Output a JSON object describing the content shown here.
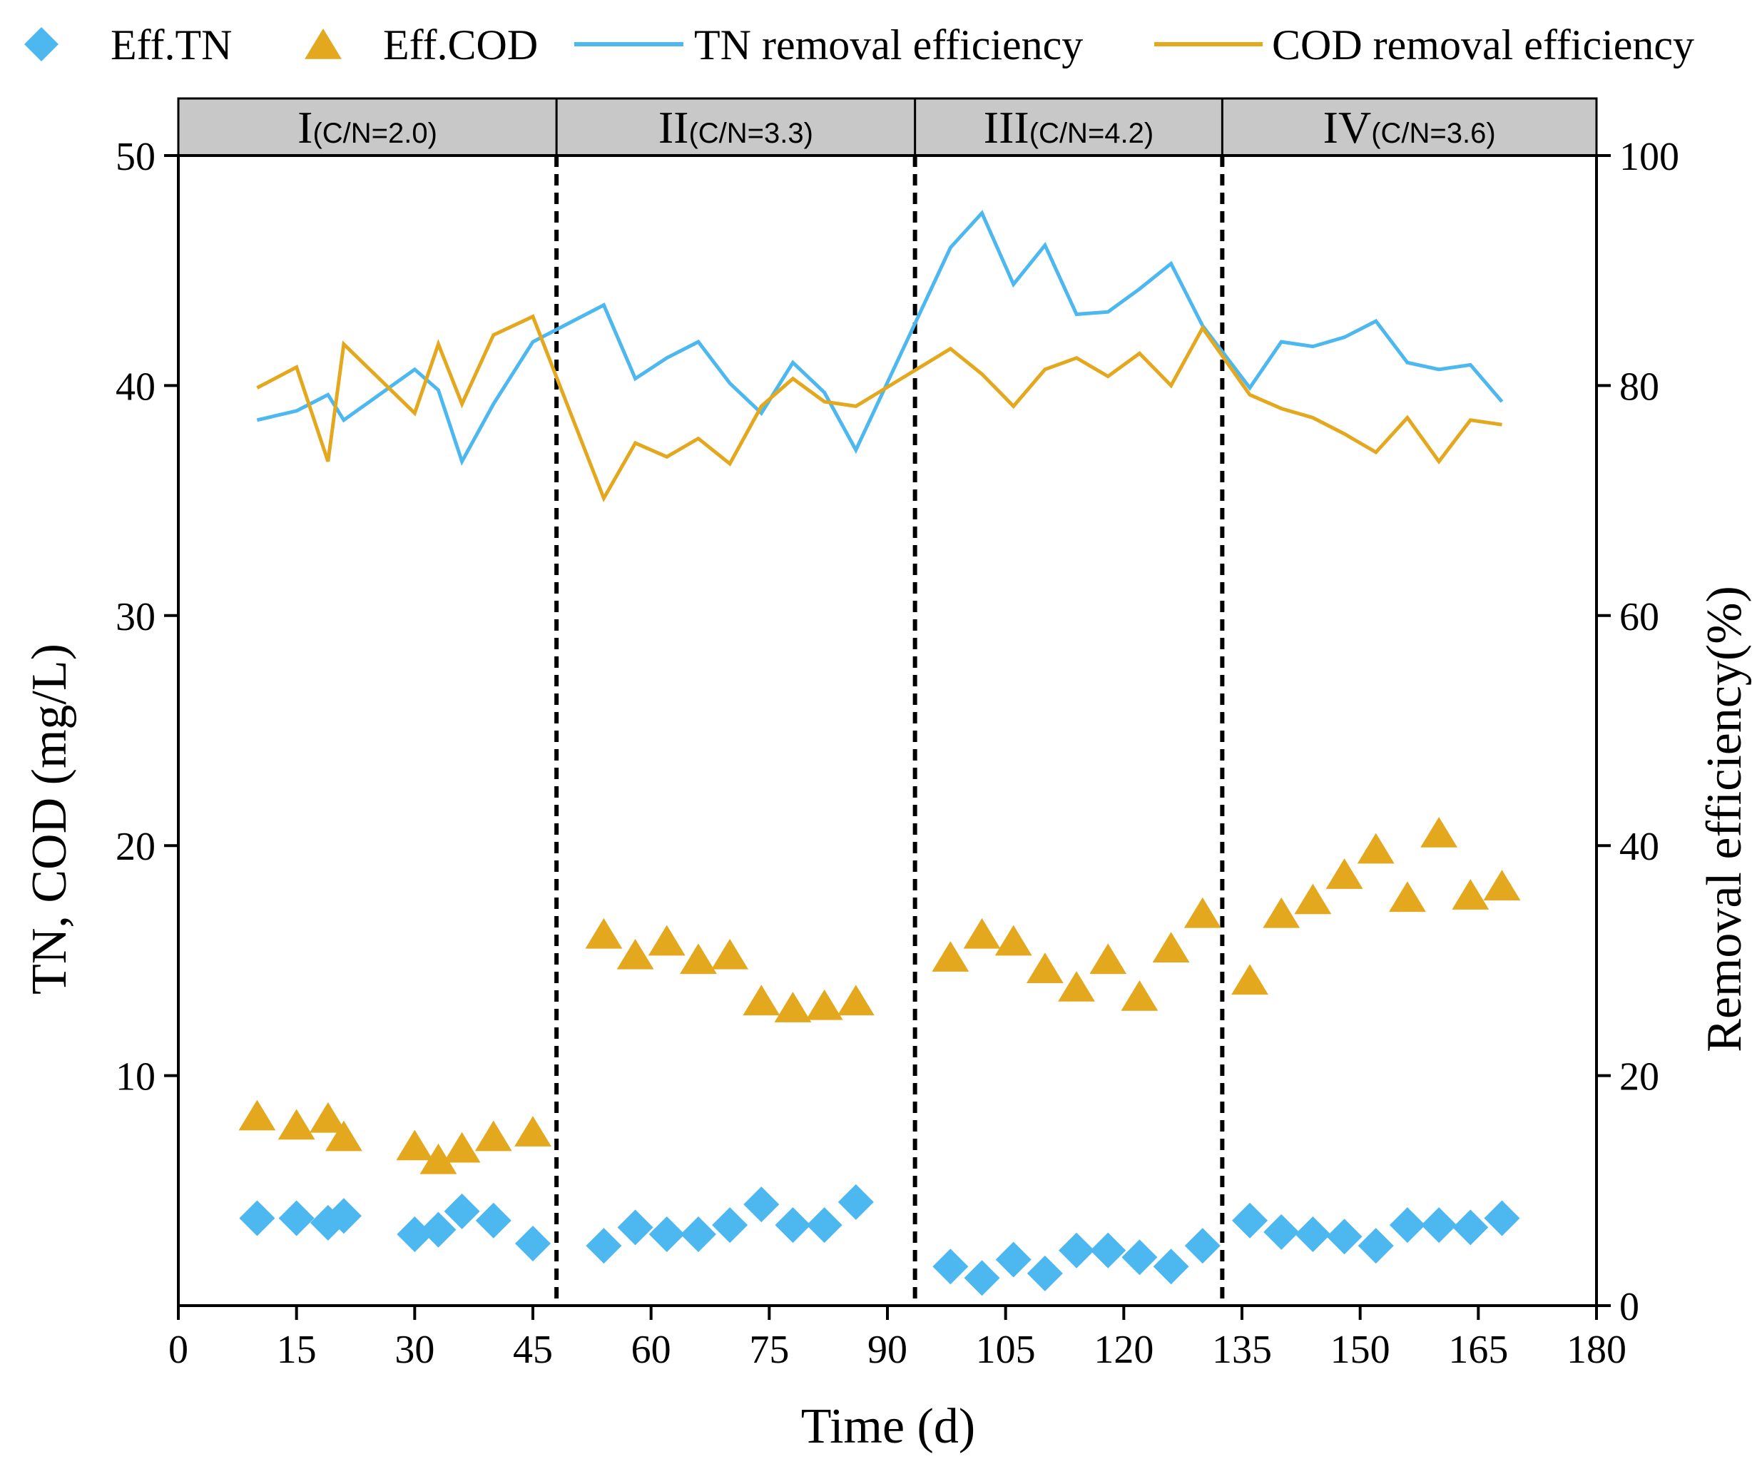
{
  "chart_data": {
    "type": "scatter",
    "xlabel": "Time (d)",
    "ylabel": "TN, COD (mg/L)",
    "y2label": "Removal efficiency(%)",
    "xlim": [
      0,
      180
    ],
    "ylim": [
      0,
      50
    ],
    "y2lim": [
      0,
      100
    ],
    "xticks": [
      "0",
      "15",
      "30",
      "45",
      "60",
      "75",
      "90",
      "105",
      "120",
      "135",
      "150",
      "165",
      "180"
    ],
    "yticks": [
      "10",
      "20",
      "30",
      "40",
      "50"
    ],
    "y2ticks": [
      "0",
      "20",
      "40",
      "60",
      "80",
      "100"
    ],
    "grid": false,
    "legend_position": "top",
    "colors": {
      "tn": "#4DB8F0",
      "cod": "#E3A81E"
    },
    "phases": [
      {
        "roman": "I",
        "cn": "(C/N=2.0)",
        "start": 0,
        "end": 48
      },
      {
        "roman": "II",
        "cn": "(C/N=3.3)",
        "start": 48,
        "end": 93.5
      },
      {
        "roman": "III",
        "cn": "(C/N=4.2)",
        "start": 93.5,
        "end": 132.5
      },
      {
        "roman": "IV",
        "cn": "(C/N=3.6)",
        "start": 132.5,
        "end": 180
      }
    ],
    "phase_boundaries": [
      48,
      93.5,
      132.5
    ],
    "series": [
      {
        "name": "Eff.TN",
        "kind": "diamond",
        "axis": "left",
        "color": "#4DB8F0",
        "x": [
          10,
          15,
          19,
          21,
          30,
          33,
          36,
          40,
          45,
          54,
          58,
          62,
          66,
          70,
          74,
          78,
          82,
          86,
          98,
          102,
          106,
          110,
          114,
          118,
          122,
          126,
          130,
          136,
          140,
          144,
          148,
          152,
          156,
          160,
          164,
          168
        ],
        "y": [
          3.8,
          3.8,
          3.6,
          3.9,
          3.1,
          3.3,
          4.1,
          3.7,
          2.7,
          2.6,
          3.4,
          3.1,
          3.1,
          3.5,
          4.4,
          3.5,
          3.5,
          4.5,
          1.7,
          1.2,
          2.0,
          1.4,
          2.4,
          2.4,
          2.1,
          1.7,
          2.6,
          3.7,
          3.2,
          3.1,
          3.0,
          2.6,
          3.5,
          3.5,
          3.4,
          3.8
        ]
      },
      {
        "name": "Eff.COD",
        "kind": "triangle",
        "axis": "left",
        "color": "#E3A81E",
        "x": [
          10,
          15,
          19,
          21,
          30,
          33,
          36,
          40,
          45,
          54,
          58,
          62,
          66,
          70,
          74,
          78,
          82,
          86,
          98,
          102,
          106,
          110,
          114,
          118,
          122,
          126,
          130,
          136,
          140,
          144,
          148,
          152,
          156,
          160,
          164,
          168
        ],
        "y": [
          8.2,
          7.8,
          8.1,
          7.3,
          6.9,
          6.3,
          6.8,
          7.3,
          7.5,
          16.1,
          15.2,
          15.8,
          15.0,
          15.2,
          13.2,
          12.9,
          13.0,
          13.2,
          15.1,
          16.1,
          15.8,
          14.6,
          13.8,
          15.0,
          13.4,
          15.5,
          17.0,
          14.1,
          17.0,
          17.6,
          18.7,
          19.8,
          17.7,
          20.5,
          17.8,
          18.2
        ]
      },
      {
        "name": "TN removal efficiency",
        "kind": "line",
        "axis": "right",
        "color": "#4DB8F0",
        "x": [
          10,
          15,
          19,
          21,
          30,
          33,
          36,
          40,
          45,
          54,
          58,
          62,
          66,
          70,
          74,
          78,
          82,
          86,
          98,
          102,
          106,
          110,
          114,
          118,
          122,
          126,
          130,
          136,
          140,
          144,
          148,
          152,
          156,
          160,
          164,
          168
        ],
        "y": [
          77.0,
          77.8,
          79.2,
          77.0,
          81.4,
          79.6,
          73.4,
          78.4,
          83.8,
          87.0,
          80.6,
          82.4,
          83.8,
          80.2,
          77.6,
          82.0,
          79.4,
          74.4,
          92.0,
          95.0,
          88.8,
          92.2,
          86.2,
          86.4,
          88.4,
          90.6,
          85.2,
          79.8,
          83.8,
          83.4,
          84.2,
          85.6,
          82.0,
          81.4,
          81.8,
          78.6
        ]
      },
      {
        "name": "COD removal efficiency",
        "kind": "line",
        "axis": "right",
        "color": "#E3A81E",
        "x": [
          10,
          15,
          19,
          21,
          30,
          33,
          36,
          40,
          45,
          54,
          58,
          62,
          66,
          70,
          74,
          78,
          82,
          86,
          98,
          102,
          106,
          110,
          114,
          118,
          122,
          126,
          130,
          136,
          140,
          144,
          148,
          152,
          156,
          160,
          164,
          168
        ],
        "y": [
          79.8,
          81.6,
          73.4,
          83.6,
          77.6,
          83.6,
          78.4,
          84.4,
          86.0,
          70.2,
          75.0,
          73.8,
          75.4,
          73.2,
          78.2,
          80.6,
          78.6,
          78.2,
          83.2,
          81.0,
          78.2,
          81.4,
          82.4,
          80.8,
          82.8,
          80.0,
          85.0,
          79.2,
          78.0,
          77.2,
          75.8,
          74.2,
          77.2,
          73.4,
          77.0,
          76.6
        ]
      }
    ]
  }
}
